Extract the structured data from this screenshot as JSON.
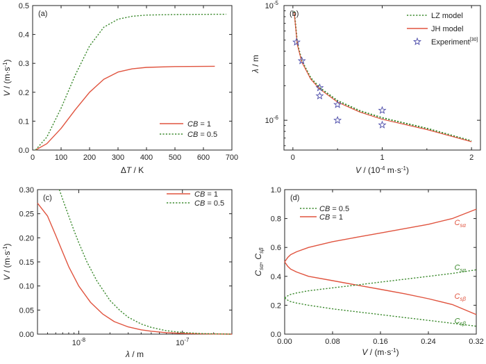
{
  "chart_data": [
    {
      "type": "line",
      "panel_label": "(a)",
      "xlabel_sym": "Δ",
      "xlabel_var": "T",
      "xlabel_unit": " / K",
      "ylabel_var": "V",
      "ylabel_unit": " / (m·s",
      "ylabel_exp": "-1",
      "ylabel_close": ")",
      "xlim": [
        0,
        700
      ],
      "ylim": [
        0,
        0.5
      ],
      "xticks": [
        "0",
        "100",
        "200",
        "300",
        "400",
        "500",
        "600",
        "700"
      ],
      "xtick_values": [
        0,
        100,
        200,
        300,
        400,
        500,
        600,
        700
      ],
      "yticks": [
        "0.0",
        "0.1",
        "0.2",
        "0.3",
        "0.4",
        "0.5"
      ],
      "ytick_values": [
        0,
        0.1,
        0.2,
        0.3,
        0.4,
        0.5
      ],
      "legend_position": "bottom-right",
      "series": [
        {
          "label_var": "CB",
          "label_val": " = 1",
          "color": "#e0533e",
          "style": "solid",
          "x": [
            10,
            50,
            100,
            150,
            200,
            250,
            300,
            350,
            400,
            500,
            640
          ],
          "y": [
            0.0,
            0.022,
            0.075,
            0.14,
            0.2,
            0.245,
            0.27,
            0.281,
            0.286,
            0.289,
            0.29
          ]
        },
        {
          "label_var": "CB",
          "label_val": " = 0.5",
          "color": "#3c8a2e",
          "style": "dotted",
          "x": [
            10,
            50,
            100,
            150,
            200,
            250,
            300,
            350,
            400,
            500,
            680
          ],
          "y": [
            0.0,
            0.045,
            0.145,
            0.26,
            0.36,
            0.425,
            0.453,
            0.463,
            0.467,
            0.469,
            0.47
          ]
        }
      ]
    },
    {
      "type": "line",
      "panel_label": "(b)",
      "xlabel_var": "V",
      "xlabel_unit": " / (10",
      "xlabel_exp": "-4",
      "xlabel_close": " m·s",
      "xlabel_exp2": "-1",
      "xlabel_close2": ")",
      "ylabel_var": "λ",
      "ylabel_unit": " / m",
      "xlim": [
        -0.1,
        2.1
      ],
      "ylim_log": [
        5.5e-07,
        1e-05
      ],
      "xticks": [
        "0",
        "1",
        "2"
      ],
      "xtick_values": [
        0,
        1,
        2
      ],
      "yticks_base": [
        "10",
        "10"
      ],
      "yticks_exp": [
        "-6",
        "-5"
      ],
      "ytick_values": [
        1e-06,
        1e-05
      ],
      "legend_position": "top-right",
      "series": [
        {
          "label": "LZ model",
          "color": "#3c8a2e",
          "style": "dotted",
          "x": [
            0.015,
            0.05,
            0.1,
            0.2,
            0.3,
            0.5,
            0.75,
            1.0,
            1.5,
            2.0
          ],
          "y": [
            8.9e-06,
            4.65e-06,
            3.3e-06,
            2.34e-06,
            1.92e-06,
            1.48e-06,
            1.21e-06,
            1.05e-06,
            8.5e-07,
            6.6e-07
          ]
        },
        {
          "label": "JH model",
          "color": "#e0533e",
          "style": "solid",
          "x": [
            0.015,
            0.05,
            0.1,
            0.2,
            0.3,
            0.5,
            0.75,
            1.0,
            1.5,
            2.0
          ],
          "y": [
            8.7e-06,
            4.55e-06,
            3.22e-06,
            2.28e-06,
            1.87e-06,
            1.44e-06,
            1.18e-06,
            1.02e-06,
            8.3e-07,
            6.5e-07
          ]
        }
      ],
      "experiment": {
        "label": "Experiment",
        "label_ref": "[30]",
        "color": "#4a4aa8",
        "x": [
          0.04,
          0.1,
          0.3,
          0.3,
          0.5,
          0.5,
          1.0,
          1.0
        ],
        "y": [
          4.8e-06,
          3.3e-06,
          1.92e-06,
          1.63e-06,
          1.37e-06,
          1e-06,
          1.22e-06,
          9.1e-07
        ]
      }
    },
    {
      "type": "line",
      "panel_label": "(c)",
      "xlabel_var": "λ",
      "xlabel_unit": " / m",
      "ylabel_var": "V",
      "ylabel_unit": " / (m·s",
      "ylabel_exp": "-1",
      "ylabel_close": ")",
      "xlim_log": [
        4e-09,
        3e-07
      ],
      "ylim": [
        0,
        0.3
      ],
      "xticks_base": [
        "10",
        "10"
      ],
      "xticks_exp": [
        "-8",
        "-7"
      ],
      "xtick_values": [
        1e-08,
        1e-07
      ],
      "yticks": [
        "0.00",
        "0.05",
        "0.10",
        "0.15",
        "0.20",
        "0.25",
        "0.30"
      ],
      "ytick_values": [
        0,
        0.05,
        0.1,
        0.15,
        0.2,
        0.25,
        0.3
      ],
      "legend_position": "top-right",
      "series": [
        {
          "label_var": "CB",
          "label_val": " = 1",
          "color": "#e0533e",
          "style": "solid",
          "x": [
            4e-09,
            5e-09,
            6e-09,
            7e-09,
            8e-09,
            1e-08,
            1.3e-08,
            1.7e-08,
            2.2e-08,
            3e-08,
            4e-08,
            5e-08,
            7e-08,
            1e-07,
            1.5e-07,
            3e-07
          ],
          "y": [
            0.272,
            0.245,
            0.205,
            0.17,
            0.14,
            0.1,
            0.066,
            0.042,
            0.026,
            0.015,
            0.009,
            0.006,
            0.003,
            0.0015,
            0.0006,
            0.0
          ]
        },
        {
          "label_var": "CB",
          "label_val": " = 0.5",
          "color": "#3c8a2e",
          "style": "dotted",
          "x": [
            6.5e-09,
            7e-09,
            8e-09,
            9e-09,
            1e-08,
            1.2e-08,
            1.5e-08,
            2e-08,
            2.5e-08,
            3e-08,
            4e-08,
            5e-08,
            7e-08,
            1e-07,
            1.5e-07,
            3e-07
          ],
          "y": [
            0.3,
            0.28,
            0.245,
            0.215,
            0.19,
            0.15,
            0.11,
            0.07,
            0.049,
            0.035,
            0.021,
            0.014,
            0.007,
            0.0035,
            0.0012,
            0.0
          ]
        }
      ]
    },
    {
      "type": "line",
      "panel_label": "(d)",
      "xlabel_var": "V",
      "xlabel_unit": " / (m·s",
      "xlabel_exp": "-1",
      "xlabel_close": ")",
      "ylabel_c1": "C",
      "ylabel_s1": "sα",
      "ylabel_sep": ", ",
      "ylabel_c2": "C",
      "ylabel_s2": "sβ",
      "xlim": [
        0,
        0.32
      ],
      "ylim": [
        0,
        1.0
      ],
      "xticks": [
        "0.00",
        "0.08",
        "0.16",
        "0.24",
        "0.32"
      ],
      "xtick_values": [
        0,
        0.08,
        0.16,
        0.24,
        0.32
      ],
      "yticks": [
        "0.0",
        "0.2",
        "0.4",
        "0.6",
        "0.8",
        "1.0"
      ],
      "ytick_values": [
        0,
        0.2,
        0.4,
        0.6,
        0.8,
        1.0
      ],
      "legend_position": "top-left",
      "legend": [
        {
          "label_var": "CB",
          "label_val": " = 0.5",
          "color": "#3c8a2e",
          "style": "dotted"
        },
        {
          "label_var": "CB",
          "label_val": " = 1",
          "color": "#e0533e",
          "style": "solid"
        }
      ],
      "series": [
        {
          "id": "red_alpha",
          "color": "#e0533e",
          "style": "solid",
          "x": [
            0,
            0.005,
            0.01,
            0.02,
            0.04,
            0.08,
            0.12,
            0.16,
            0.2,
            0.24,
            0.28,
            0.32
          ],
          "y": [
            0.5,
            0.53,
            0.55,
            0.57,
            0.6,
            0.64,
            0.67,
            0.7,
            0.73,
            0.76,
            0.8,
            0.865
          ]
        },
        {
          "id": "red_beta",
          "color": "#e0533e",
          "style": "solid",
          "x": [
            0,
            0.005,
            0.01,
            0.02,
            0.04,
            0.08,
            0.12,
            0.16,
            0.2,
            0.24,
            0.28,
            0.32
          ],
          "y": [
            0.5,
            0.47,
            0.45,
            0.43,
            0.4,
            0.37,
            0.34,
            0.31,
            0.28,
            0.245,
            0.205,
            0.135
          ]
        },
        {
          "id": "green_alpha",
          "color": "#3c8a2e",
          "style": "dotted",
          "x": [
            0,
            0.005,
            0.01,
            0.02,
            0.04,
            0.08,
            0.12,
            0.16,
            0.2,
            0.24,
            0.28,
            0.32
          ],
          "y": [
            0.25,
            0.265,
            0.275,
            0.285,
            0.3,
            0.32,
            0.34,
            0.36,
            0.38,
            0.4,
            0.42,
            0.445
          ]
        },
        {
          "id": "green_beta",
          "color": "#3c8a2e",
          "style": "dotted",
          "x": [
            0,
            0.005,
            0.01,
            0.02,
            0.04,
            0.08,
            0.12,
            0.16,
            0.2,
            0.24,
            0.28,
            0.32
          ],
          "y": [
            0.25,
            0.235,
            0.225,
            0.215,
            0.2,
            0.175,
            0.155,
            0.135,
            0.115,
            0.095,
            0.075,
            0.055
          ]
        }
      ],
      "annotations": [
        {
          "c": "C",
          "s": "sα",
          "color": "#e0533e",
          "x": 0.293,
          "y": 0.755
        },
        {
          "c": "C",
          "s": "sα",
          "color": "#3c8a2e",
          "x": 0.293,
          "y": 0.445
        },
        {
          "c": "C",
          "s": "sβ",
          "color": "#e0533e",
          "x": 0.293,
          "y": 0.245
        },
        {
          "c": "C",
          "s": "sβ",
          "color": "#3c8a2e",
          "x": 0.293,
          "y": 0.075
        }
      ]
    }
  ]
}
